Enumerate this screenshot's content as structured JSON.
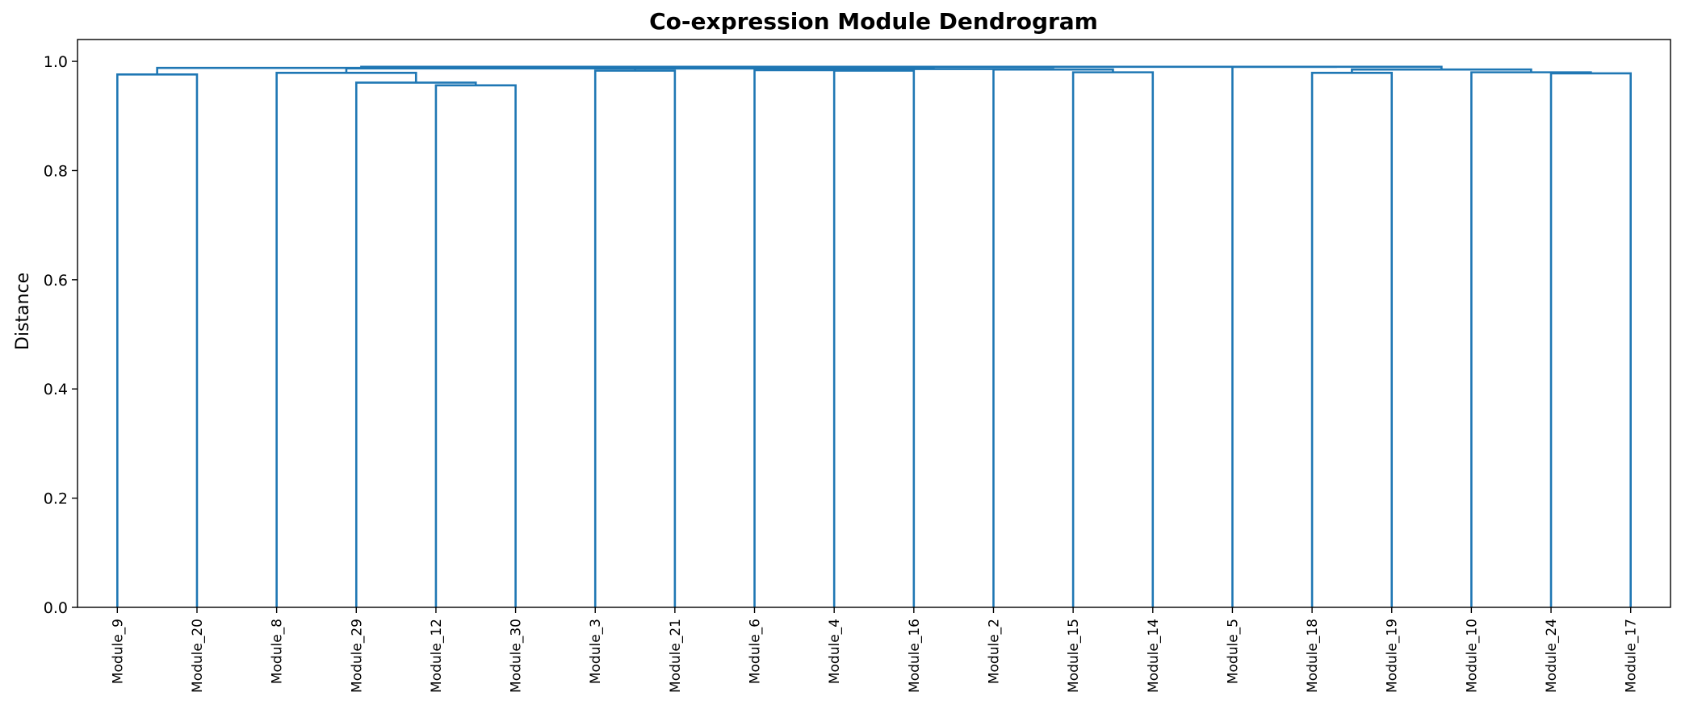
{
  "chart_data": {
    "type": "dendrogram",
    "title": "Co-expression Module Dendrogram",
    "xlabel": "",
    "ylabel": "Distance",
    "ylim": [
      0,
      1.04
    ],
    "yticks": [
      "0.0",
      "0.2",
      "0.4",
      "0.6",
      "0.8",
      "1.0"
    ],
    "ytick_values": [
      0,
      0.2,
      0.4,
      0.6,
      0.8,
      1.0
    ],
    "grid": false,
    "line_color": "#1f77b4",
    "leaves": [
      "Module_9",
      "Module_20",
      "Module_8",
      "Module_29",
      "Module_12",
      "Module_30",
      "Module_3",
      "Module_21",
      "Module_6",
      "Module_4",
      "Module_16",
      "Module_2",
      "Module_15",
      "Module_14",
      "Module_5",
      "Module_18",
      "Module_19",
      "Module_10",
      "Module_24",
      "Module_17"
    ],
    "merges": [
      {
        "left": "Module_9",
        "right": "Module_20",
        "height": 0.976
      },
      {
        "left": "Module_12",
        "right": "Module_30",
        "height": 0.956
      },
      {
        "left": "Module_29",
        "right": "C2",
        "height": 0.961
      },
      {
        "left": "Module_8",
        "right": "C3",
        "height": 0.979
      },
      {
        "left": "Module_3",
        "right": "Module_21",
        "height": 0.983
      },
      {
        "left": "Module_4",
        "right": "Module_16",
        "height": 0.983
      },
      {
        "left": "Module_6",
        "right": "C6",
        "height": 0.984
      },
      {
        "left": "Module_15",
        "right": "Module_14",
        "height": 0.98
      },
      {
        "left": "Module_2",
        "right": "C8",
        "height": 0.985
      },
      {
        "left": "Module_18",
        "right": "Module_19",
        "height": 0.979
      },
      {
        "left": "Module_24",
        "right": "Module_17",
        "height": 0.978
      },
      {
        "left": "Module_10",
        "right": "C11",
        "height": 0.98
      },
      {
        "left": "C10",
        "right": "C12",
        "height": 0.985
      },
      {
        "left": "C7",
        "right": "C9",
        "height": 0.986
      },
      {
        "left": "C5",
        "right": "C14",
        "height": 0.987
      },
      {
        "left": "C4",
        "right": "C15",
        "height": 0.987
      },
      {
        "left": "C1",
        "right": "C16",
        "height": 0.988
      },
      {
        "left": "Module_5",
        "right": "C13",
        "height": 0.99
      },
      {
        "left": "C17",
        "right": "C18",
        "height": 0.99
      }
    ]
  }
}
